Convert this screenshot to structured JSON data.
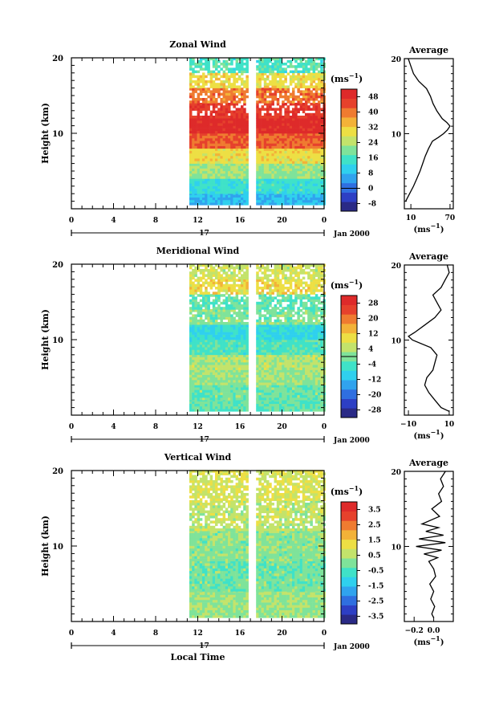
{
  "colors": {
    "background": "#ffffff",
    "axis": "#000000",
    "palette": [
      "#2a2a86",
      "#2d3fc4",
      "#2f6fe0",
      "#30a3ee",
      "#2fd0ee",
      "#3fe2c8",
      "#7fe39a",
      "#c3e36b",
      "#eddf44",
      "#f3b238",
      "#ef7b30",
      "#e6412c",
      "#de2a2a"
    ]
  },
  "chart_data": [
    {
      "id": "zonal",
      "type": "heatmap",
      "title": "Zonal Wind",
      "ylabel": "Height (km)",
      "xlabel": "",
      "yticklabels": [
        "20",
        "10"
      ],
      "xticklabels": [
        "0",
        "4",
        "8",
        "12",
        "16",
        "20",
        "0"
      ],
      "x": [
        0,
        4,
        8,
        12,
        16,
        20,
        24
      ],
      "y": [
        10,
        20
      ],
      "xlim": [
        0,
        24
      ],
      "ylim": [
        0,
        20
      ],
      "date_axis": {
        "day": "17",
        "month_label": "Jan 2000"
      },
      "data_start_hour": 11.2,
      "gap_hours": [
        16.8,
        17.3
      ],
      "colorbar": {
        "unit_label": "(ms",
        "unit_exp": "−1",
        "unit_close": ")",
        "ticks": [
          "48",
          "40",
          "32",
          "24",
          "16",
          "8",
          "0",
          "-8"
        ],
        "range": [
          -12,
          52
        ],
        "zero_line": 0
      },
      "profile_layers": [
        {
          "height_km": [
            0.5,
            2
          ],
          "value": 8
        },
        {
          "height_km": [
            2,
            4
          ],
          "value": 14
        },
        {
          "height_km": [
            4,
            6
          ],
          "value": 22
        },
        {
          "height_km": [
            6,
            8
          ],
          "value": 30
        },
        {
          "height_km": [
            8,
            10
          ],
          "value": 42
        },
        {
          "height_km": [
            10,
            12
          ],
          "value": 50
        },
        {
          "height_km": [
            12,
            14
          ],
          "value": 46
        },
        {
          "height_km": [
            14,
            16
          ],
          "value": 40
        },
        {
          "height_km": [
            16,
            18
          ],
          "value": 30
        },
        {
          "height_km": [
            18,
            20
          ],
          "value": 16
        }
      ],
      "average": {
        "title": "Average",
        "xlabel": "(ms",
        "unit_exp": "−1",
        "unit_close": ")",
        "xticklabels": [
          "10",
          "70"
        ],
        "xticks": [
          10,
          70
        ],
        "xlim": [
          0,
          75
        ],
        "yticklabels": [
          "20",
          "10"
        ],
        "height_km": [
          1,
          2,
          3,
          4,
          5,
          6,
          7,
          8,
          9,
          9.5,
          10,
          10.5,
          11,
          11.5,
          12,
          13,
          14,
          15,
          16,
          17,
          18,
          19,
          20
        ],
        "value": [
          2,
          8,
          14,
          19,
          24,
          28,
          32,
          37,
          43,
          52,
          60,
          66,
          70,
          65,
          58,
          50,
          44,
          40,
          34,
          22,
          14,
          10,
          6
        ]
      }
    },
    {
      "id": "meridional",
      "type": "heatmap",
      "title": "Meridional Wind",
      "ylabel": "Height (km)",
      "xlabel": "",
      "yticklabels": [
        "20",
        "10"
      ],
      "xticklabels": [
        "0",
        "4",
        "8",
        "12",
        "16",
        "20",
        "0"
      ],
      "x": [
        0,
        4,
        8,
        12,
        16,
        20,
        24
      ],
      "y": [
        10,
        20
      ],
      "xlim": [
        0,
        24
      ],
      "ylim": [
        0,
        20
      ],
      "date_axis": {
        "day": "17",
        "month_label": "Jan 2000"
      },
      "data_start_hour": 11.2,
      "gap_hours": [
        16.8,
        17.3
      ],
      "colorbar": {
        "unit_label": "(ms",
        "unit_exp": "−1",
        "unit_close": ")",
        "ticks": [
          "28",
          "20",
          "12",
          "4",
          "-4",
          "-12",
          "-20",
          "-28"
        ],
        "range": [
          -32,
          32
        ],
        "zero_line": 0
      },
      "profile_layers": [
        {
          "height_km": [
            0.5,
            2
          ],
          "value": -2
        },
        {
          "height_km": [
            2,
            4
          ],
          "value": -1
        },
        {
          "height_km": [
            4,
            6
          ],
          "value": 2
        },
        {
          "height_km": [
            6,
            8
          ],
          "value": 4
        },
        {
          "height_km": [
            8,
            10
          ],
          "value": -4
        },
        {
          "height_km": [
            10,
            12
          ],
          "value": -8
        },
        {
          "height_km": [
            12,
            14
          ],
          "value": 0
        },
        {
          "height_km": [
            14,
            16
          ],
          "value": -2
        },
        {
          "height_km": [
            16,
            18
          ],
          "value": 10
        },
        {
          "height_km": [
            18,
            20
          ],
          "value": 6
        }
      ],
      "average": {
        "title": "Average",
        "xlabel": "(ms",
        "unit_exp": "−1",
        "unit_close": ")",
        "xticklabels": [
          "−10",
          "10"
        ],
        "xticks": [
          -10,
          10
        ],
        "xlim": [
          -12,
          12
        ],
        "yticklabels": [
          "20",
          "10"
        ],
        "height_km": [
          0.5,
          1,
          2,
          3,
          4,
          5,
          6,
          7,
          8,
          9,
          10,
          10.5,
          11,
          12,
          13,
          14,
          15,
          16,
          17,
          18,
          19,
          20
        ],
        "value": [
          10,
          6,
          3,
          0,
          -2,
          -1,
          2,
          3,
          4,
          1,
          -8,
          -10,
          -7,
          -2,
          3,
          6,
          4,
          2,
          6,
          8,
          10,
          9
        ]
      }
    },
    {
      "id": "vertical",
      "type": "heatmap",
      "title": "Vertical Wind",
      "ylabel": "Height (km)",
      "xlabel": "Local Time",
      "yticklabels": [
        "20",
        "10"
      ],
      "xticklabels": [
        "0",
        "4",
        "8",
        "12",
        "16",
        "20",
        "0"
      ],
      "x": [
        0,
        4,
        8,
        12,
        16,
        20,
        24
      ],
      "y": [
        10,
        20
      ],
      "xlim": [
        0,
        24
      ],
      "ylim": [
        0,
        20
      ],
      "date_axis": {
        "day": "17",
        "month_label": "Jan 2000"
      },
      "data_start_hour": 11.2,
      "gap_hours": [
        16.8,
        17.3
      ],
      "colorbar": {
        "unit_label": "(ms",
        "unit_exp": "−1",
        "unit_close": ")",
        "ticks": [
          "3.5",
          "2.5",
          "1.5",
          "0.5",
          "-0.5",
          "-1.5",
          "-2.5",
          "-3.5"
        ],
        "range": [
          -4,
          4
        ],
        "zero_line": null
      },
      "profile_layers": [
        {
          "height_km": [
            0.5,
            4
          ],
          "value": 0.2
        },
        {
          "height_km": [
            4,
            8
          ],
          "value": -0.1
        },
        {
          "height_km": [
            8,
            12
          ],
          "value": 0.1
        },
        {
          "height_km": [
            12,
            16
          ],
          "value": 0.6
        },
        {
          "height_km": [
            16,
            20
          ],
          "value": 0.9
        }
      ],
      "average": {
        "title": "Average",
        "xlabel": "(ms",
        "unit_exp": "−1",
        "unit_close": ")",
        "xticklabels": [
          "−0.2",
          "0.0"
        ],
        "xticks": [
          -0.2,
          0.0
        ],
        "xlim": [
          -0.3,
          0.2
        ],
        "yticklabels": [
          "20",
          "10"
        ],
        "height_km": [
          0.5,
          1,
          2,
          3,
          4,
          5,
          6,
          7,
          8,
          8.5,
          9,
          9.5,
          10,
          10.5,
          11,
          11.5,
          12,
          12.5,
          13,
          14,
          15,
          16,
          17,
          18,
          19,
          20
        ],
        "value": [
          0.0,
          -0.02,
          0.01,
          -0.03,
          0.0,
          -0.04,
          0.02,
          0.0,
          -0.05,
          0.04,
          -0.1,
          0.08,
          -0.18,
          0.12,
          -0.15,
          0.1,
          -0.08,
          0.05,
          -0.12,
          0.06,
          -0.02,
          0.08,
          0.05,
          0.1,
          0.07,
          0.12
        ]
      }
    }
  ]
}
